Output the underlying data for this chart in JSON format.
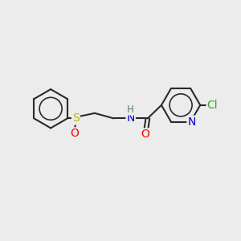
{
  "background_color": "#ececec",
  "bond_color": "#2a2a2a",
  "bond_width": 1.5,
  "atom_colors": {
    "S": "#bbbb00",
    "O": "#ff0000",
    "N_amide": "#0000cc",
    "N_pyridine": "#0000cc",
    "Cl": "#33aa33",
    "H": "#607878"
  },
  "figsize": [
    3.0,
    3.0
  ],
  "dpi": 100,
  "xlim": [
    0,
    10
  ],
  "ylim": [
    0,
    10
  ]
}
